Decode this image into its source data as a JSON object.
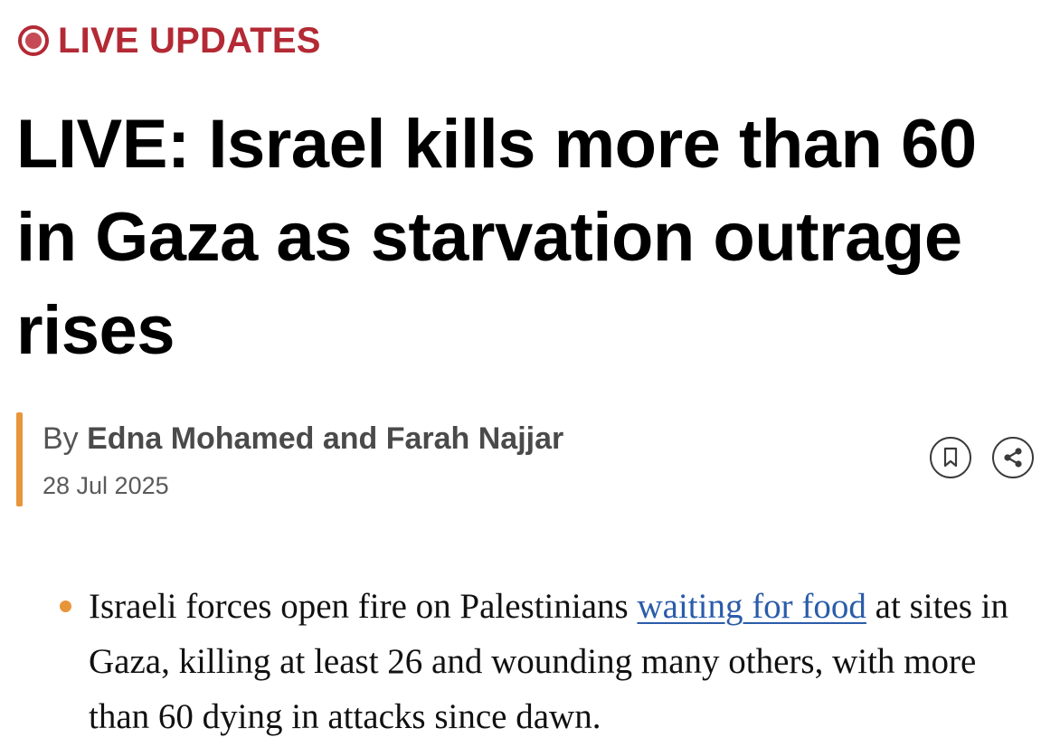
{
  "live_badge": {
    "label": "LIVE UPDATES",
    "color": "#b32a35",
    "icon": "live-dot-icon"
  },
  "article": {
    "headline": "LIVE: Israel kills more than 60 in Gaza as starvation outrage rises",
    "byline_prefix": "By ",
    "authors": "Edna Mohamed and Farah Najjar",
    "date": "28 Jul 2025",
    "accent_color": "#e8953a"
  },
  "actions": {
    "bookmark_icon": "bookmark-icon",
    "share_icon": "share-icon"
  },
  "bullets": [
    {
      "text_before": "Israeli forces open fire on Palestinians ",
      "link_text": "waiting for food",
      "text_after": " at sites in Gaza, killing at least 26 and wounding many others, with more than 60 dying in attacks since dawn."
    }
  ]
}
